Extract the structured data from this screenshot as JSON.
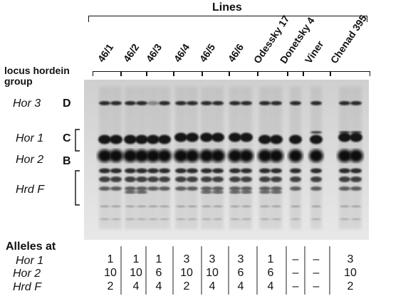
{
  "header": {
    "title": "Lines"
  },
  "group_label": {
    "line1": "locus hordein",
    "line2": "group"
  },
  "lanes": [
    "46/1",
    "46/2",
    "46/3",
    "46/4",
    "46/5",
    "46/6",
    "Odessky 17",
    "Donetsky 4",
    "Viner",
    "Chenad 395"
  ],
  "loci": [
    {
      "locus": "Hor 3",
      "group": "D"
    },
    {
      "locus": "Hor 1",
      "group": "C"
    },
    {
      "locus": "Hor 2",
      "group": "B"
    },
    {
      "locus": "Hrd F",
      "group": ""
    }
  ],
  "alleles": {
    "title": "Alleles at",
    "rows": [
      {
        "locus": "Hor 1",
        "values": [
          "1",
          "1",
          "1",
          "3",
          "3",
          "3",
          "1",
          "–",
          "–",
          "3"
        ]
      },
      {
        "locus": "Hor 2",
        "values": [
          "10",
          "10",
          "6",
          "10",
          "10",
          "6",
          "6",
          "–",
          "–",
          "10"
        ]
      },
      {
        "locus": "Hrd F",
        "values": [
          "2",
          "4",
          "4",
          "2",
          "4",
          "4",
          "4",
          "–",
          "–",
          "2"
        ]
      }
    ]
  },
  "colors": {
    "band": "#0d0d0d",
    "background": "#ffffff",
    "gel": "#d6d6d6"
  }
}
